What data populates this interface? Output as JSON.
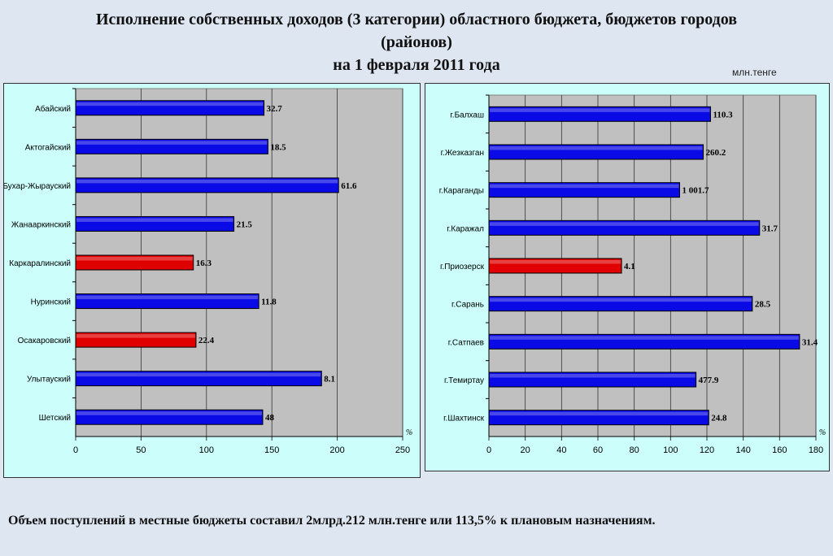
{
  "title": {
    "line1": "Исполнение собственных доходов (3 категории) областного бюджета, бюджетов городов",
    "line2": "(районов)",
    "line3": "на 1 февраля 2011 года"
  },
  "unit_label": "млн.тенге",
  "footer": {
    "text": "Объем поступлений в местные бюджеты составил 2млрд.212 млн.тенге или 113,5% к плановым назначениям."
  },
  "colors": {
    "blue": "#0a0ae6",
    "red": "#e00000",
    "plot_bg": "#c0c0c0",
    "panel_bg": "#ccfffb"
  },
  "chart_data": [
    {
      "type": "bar",
      "orientation": "horizontal",
      "categories": [
        "Абайский",
        "Актогайский",
        "Бухар-Жырауский",
        "Жанааркинский",
        "Каркаралинский",
        "Нуринский",
        "Осакаровский",
        "Улытауский",
        "Шетский"
      ],
      "values": [
        144,
        147,
        201,
        121,
        90,
        140,
        92,
        188,
        143
      ],
      "bar_colors": [
        "blue",
        "blue",
        "blue",
        "blue",
        "red",
        "blue",
        "red",
        "blue",
        "blue"
      ],
      "data_labels": [
        "32.7",
        "18.5",
        "61.6",
        "21.5",
        "16.3",
        "11.8",
        "22.4",
        "8.1",
        "48"
      ],
      "xlim": [
        0,
        250
      ],
      "xticks": [
        0,
        50,
        100,
        150,
        200,
        250
      ],
      "axis_unit": "%",
      "grid": true
    },
    {
      "type": "bar",
      "orientation": "horizontal",
      "categories": [
        "г.Балхаш",
        "г.Жезказган",
        "г.Караганды",
        "г.Каражал",
        "г.Приозерск",
        "г.Сарань",
        "г.Сатпаев",
        "г.Темиртау",
        "г.Шахтинск"
      ],
      "values": [
        122,
        118,
        105,
        149,
        73,
        145,
        171,
        114,
        121
      ],
      "bar_colors": [
        "blue",
        "blue",
        "blue",
        "blue",
        "red",
        "blue",
        "blue",
        "blue",
        "blue"
      ],
      "data_labels": [
        "110.3",
        "260.2",
        "1 001.7",
        "31.7",
        "4.1",
        "28.5",
        "31.4",
        "477.9",
        "24.8"
      ],
      "xlim": [
        0,
        180
      ],
      "xticks": [
        0,
        20,
        40,
        60,
        80,
        100,
        120,
        140,
        160,
        180
      ],
      "axis_unit": "%",
      "grid": true
    }
  ]
}
